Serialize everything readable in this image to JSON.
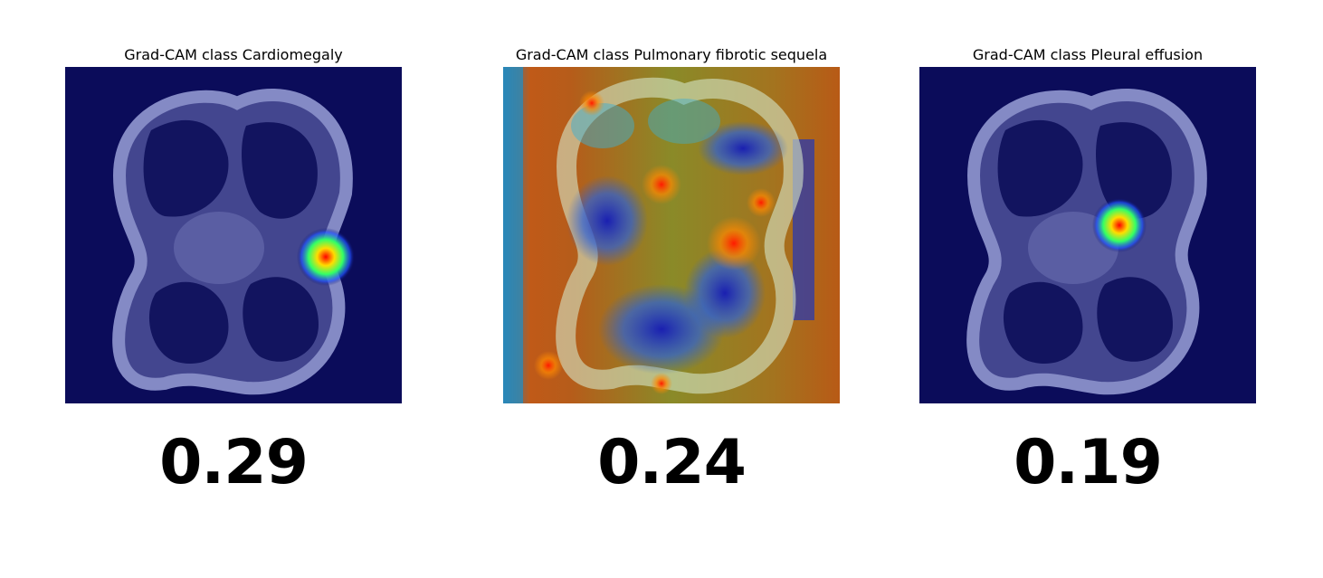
{
  "panels": [
    {
      "title": "Grad-CAM class Cardiomegaly",
      "score": "0.29",
      "heatmap": "single-hotspot-right-lateral"
    },
    {
      "title": "Grad-CAM class Pulmonary fibrotic sequela",
      "score": "0.24",
      "heatmap": "diffuse-full-coverage"
    },
    {
      "title": "Grad-CAM class Pleural effusion",
      "score": "0.19",
      "heatmap": "single-hotspot-hilar"
    }
  ],
  "colors": {
    "background": "#ffffff",
    "base_tint": "#0b0c5a",
    "text": "#000000"
  }
}
